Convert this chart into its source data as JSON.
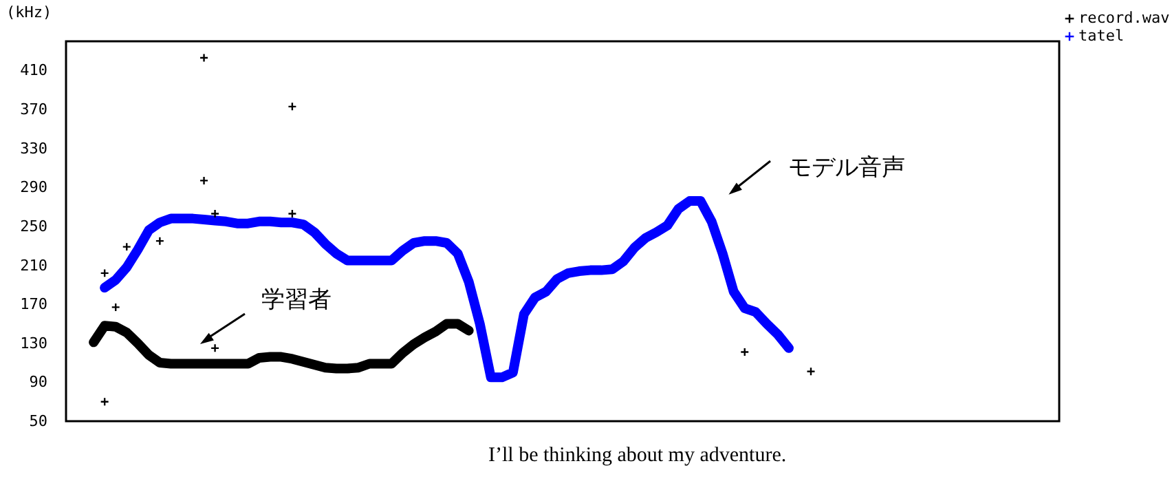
{
  "chart_data": {
    "type": "line",
    "ylabel": "(kHz)",
    "categories": [
      null,
      null,
      null,
      null,
      null,
      null,
      null,
      null,
      null,
      null,
      null,
      null,
      null,
      null,
      null,
      null,
      null,
      null,
      null,
      null,
      null,
      null,
      null,
      null,
      null,
      null,
      null,
      null,
      null,
      null,
      null,
      null,
      null,
      null,
      null,
      null,
      null,
      null,
      null,
      null,
      null,
      null,
      null,
      null,
      null,
      null,
      null,
      null,
      null,
      null,
      null,
      null,
      null,
      null,
      null,
      null,
      null,
      null,
      null,
      null,
      null,
      null,
      null,
      null,
      null,
      null,
      null,
      null,
      null,
      null,
      null,
      null,
      null,
      null,
      null,
      null,
      null,
      null,
      null,
      null,
      null,
      null,
      null,
      null,
      null,
      null,
      null,
      null,
      null,
      null
    ],
    "ylim": [
      50,
      440
    ],
    "yticks": [
      50,
      90,
      130,
      170,
      210,
      250,
      290,
      330,
      370,
      410
    ],
    "tick_labels": "y",
    "legend": "top right",
    "line_style": "solid",
    "series": [
      {
        "name": "record.wav",
        "color": "#000000",
        "values": [
          null,
          null,
          131,
          148,
          147,
          141,
          130,
          118,
          110,
          109,
          109,
          109,
          109,
          109,
          109,
          109,
          109,
          115,
          116,
          116,
          114,
          111,
          108,
          105,
          104,
          104,
          105,
          109,
          109,
          109,
          120,
          129,
          136,
          142,
          150,
          150,
          143,
          null,
          null,
          null,
          null,
          null,
          null,
          null,
          null,
          null,
          null,
          null,
          null,
          null,
          null,
          null,
          null,
          null,
          null,
          null,
          null,
          null,
          null,
          null,
          null,
          null,
          null,
          null,
          null,
          null,
          null,
          null,
          null,
          null,
          null,
          null,
          null,
          null,
          null,
          null,
          null,
          null,
          null,
          null,
          null,
          null,
          null,
          null,
          null,
          null,
          null,
          null,
          null,
          null
        ]
      },
      {
        "name": "tatel",
        "color": "#0000ff",
        "values": [
          null,
          null,
          null,
          187,
          195,
          208,
          226,
          246,
          254,
          258,
          258,
          258,
          257,
          256,
          255,
          253,
          253,
          255,
          255,
          254,
          254,
          252,
          244,
          232,
          222,
          215,
          215,
          215,
          215,
          215,
          225,
          233,
          235,
          235,
          233,
          222,
          193,
          150,
          95,
          95,
          100,
          160,
          177,
          183,
          196,
          202,
          204,
          205,
          205,
          206,
          214,
          228,
          238,
          244,
          251,
          268,
          276,
          276,
          255,
          222,
          183,
          166,
          162,
          150,
          139,
          125,
          null,
          null,
          null,
          null,
          null,
          null,
          null,
          null,
          null,
          null,
          null,
          null,
          null,
          null,
          null,
          null,
          null,
          null,
          null,
          null,
          null,
          null,
          null,
          null
        ]
      },
      {
        "type": "scatter",
        "marker": "cross",
        "color": "#000000",
        "values": [
          null,
          null,
          null,
          70,
          167,
          229,
          null,
          null,
          235,
          null,
          null,
          null,
          423,
          125,
          null,
          null,
          null,
          null,
          null,
          null,
          373,
          null,
          null,
          null,
          null,
          null,
          null,
          null,
          null,
          null,
          null,
          null,
          null,
          null,
          null,
          null,
          null,
          null,
          null,
          null,
          null,
          null,
          null,
          null,
          null,
          null,
          null,
          null,
          null,
          null,
          null,
          null,
          null,
          null,
          null,
          null,
          null,
          null,
          null,
          null,
          null,
          121,
          null,
          null,
          null,
          null,
          null,
          101,
          null,
          null,
          null,
          null,
          null,
          null,
          null,
          null,
          null,
          null,
          null,
          null,
          null,
          null,
          null,
          null,
          null,
          null,
          null,
          null,
          null,
          null
        ]
      },
      {
        "type": "scatter",
        "marker": "cross",
        "color": "#000000",
        "values": [
          null,
          null,
          null,
          202,
          null,
          null,
          null,
          null,
          null,
          null,
          null,
          null,
          297,
          263,
          null,
          null,
          null,
          null,
          null,
          null,
          263,
          null,
          null,
          null,
          null,
          null,
          null,
          null,
          null,
          null,
          null,
          null,
          null,
          null,
          null,
          null,
          null,
          null,
          null,
          null,
          null,
          null,
          null,
          null,
          null,
          null,
          null,
          null,
          null,
          null,
          null,
          null,
          null,
          null,
          null,
          null,
          null,
          null,
          null,
          null,
          null,
          null,
          null,
          null,
          null,
          null,
          null,
          null,
          null,
          null,
          null,
          null,
          null,
          null,
          null,
          null,
          null,
          null,
          null,
          null,
          null,
          null,
          null,
          null,
          null,
          null,
          null,
          null,
          null,
          null
        ]
      }
    ],
    "annotations": [
      "学習者",
      "モデル音声",
      "I’ll be thinking about my adventure."
    ]
  }
}
